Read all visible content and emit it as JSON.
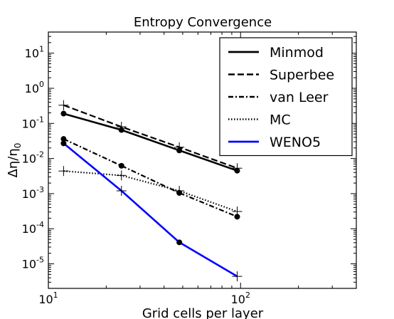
{
  "chart_data": {
    "type": "line",
    "title": "Entropy Convergence",
    "xlabel": "Grid cells per layer",
    "ylabel": "Δη/η",
    "ylabel_subscript": "0",
    "xscale": "log",
    "yscale": "log",
    "xlim": [
      10,
      400
    ],
    "ylim": [
      2e-06,
      40
    ],
    "x_ticks": [
      {
        "value": 10,
        "base": "10",
        "exp": "1"
      },
      {
        "value": 100,
        "base": "10",
        "exp": "2"
      }
    ],
    "y_ticks": [
      {
        "value": 10,
        "base": "10",
        "exp": "1"
      },
      {
        "value": 1,
        "base": "10",
        "exp": "0"
      },
      {
        "value": 0.1,
        "base": "10",
        "exp": "-1"
      },
      {
        "value": 0.01,
        "base": "10",
        "exp": "-2"
      },
      {
        "value": 0.001,
        "base": "10",
        "exp": "-3"
      },
      {
        "value": 0.0001,
        "base": "10",
        "exp": "-4"
      },
      {
        "value": 1e-05,
        "base": "10",
        "exp": "-5"
      }
    ],
    "x": [
      12,
      24,
      48,
      96
    ],
    "series": [
      {
        "name": "Minmod",
        "values": [
          0.19,
          0.065,
          0.017,
          0.0045
        ],
        "style": "solid",
        "marker": "dot",
        "color": "#000000"
      },
      {
        "name": "Superbee",
        "values": [
          0.33,
          0.08,
          0.021,
          0.0053
        ],
        "style": "dashed",
        "marker": "plus",
        "color": "#000000"
      },
      {
        "name": "van Leer",
        "values": [
          0.036,
          0.0062,
          0.00105,
          0.00022
        ],
        "style": "dashdot",
        "marker": "dot",
        "color": "#000000"
      },
      {
        "name": "MC",
        "values": [
          0.0044,
          0.0033,
          0.0012,
          0.00031
        ],
        "style": "dotted",
        "marker": "plus",
        "color": "#000000"
      },
      {
        "name": "WENO5",
        "values": [
          0.027,
          0.0012,
          4.1e-05,
          4.4e-06
        ],
        "style": "solid",
        "marker": "mixed",
        "color": "#0000ff"
      }
    ],
    "legend_position": "top-right",
    "grid": false
  }
}
